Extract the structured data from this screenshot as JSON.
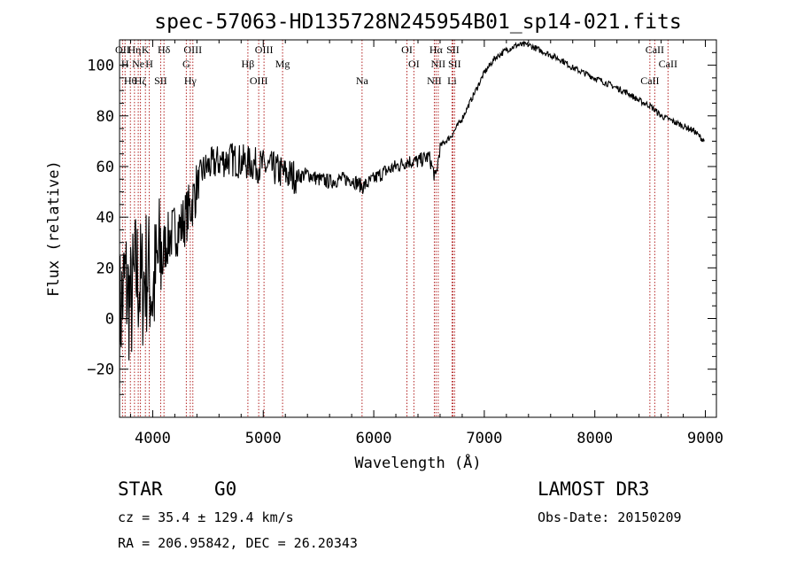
{
  "chart_data": {
    "type": "line",
    "title": "spec-57063-HD135728N245954B01_sp14-021.fits",
    "xlabel": "Wavelength (Å)",
    "ylabel": "Flux (relative)",
    "xlim": [
      3700,
      9100
    ],
    "ylim": [
      -39,
      110
    ],
    "xticks": [
      4000,
      5000,
      6000,
      7000,
      8000,
      9000
    ],
    "yticks": [
      -20,
      0,
      20,
      40,
      60,
      80,
      100
    ],
    "grid": false,
    "line_color": "#000000",
    "marker_color": "#b22222",
    "series": [
      {
        "name": "flux",
        "x": [
          3700,
          3750,
          3800,
          3850,
          3900,
          3950,
          4000,
          4050,
          4100,
          4150,
          4200,
          4250,
          4300,
          4350,
          4400,
          4450,
          4500,
          4600,
          4700,
          4800,
          4900,
          5000,
          5100,
          5200,
          5300,
          5400,
          5500,
          5600,
          5700,
          5800,
          5900,
          6000,
          6100,
          6200,
          6300,
          6400,
          6500,
          6560,
          6600,
          6700,
          6800,
          6900,
          7000,
          7100,
          7200,
          7300,
          7400,
          7500,
          7600,
          7700,
          7800,
          7900,
          8000,
          8100,
          8200,
          8300,
          8400,
          8500,
          8600,
          8700,
          8800,
          8900,
          8990
        ],
        "y": [
          0,
          15,
          5,
          18,
          12,
          20,
          10,
          22,
          28,
          32,
          35,
          36,
          40,
          45,
          52,
          58,
          60,
          62,
          63,
          62,
          61,
          60,
          59,
          57,
          56,
          57,
          55,
          54,
          55,
          55,
          52,
          55,
          58,
          60,
          62,
          62,
          64,
          55,
          68,
          72,
          79,
          88,
          97,
          103,
          106,
          108,
          108,
          106,
          104,
          102,
          99,
          97,
          95,
          93,
          91,
          89,
          86,
          84,
          80,
          78,
          76,
          74,
          70
        ]
      }
    ],
    "line_markers": [
      {
        "x": 3727,
        "label": "OII"
      },
      {
        "x": 3750,
        "label": "H"
      },
      {
        "x": 3798,
        "label": "Hθ"
      },
      {
        "x": 3835,
        "label": "Hη"
      },
      {
        "x": 3869,
        "label": "Ne"
      },
      {
        "x": 3889,
        "label": "Hζ"
      },
      {
        "x": 3934,
        "label": "K"
      },
      {
        "x": 3969,
        "label": "H"
      },
      {
        "x": 4072,
        "label": "SII"
      },
      {
        "x": 4102,
        "label": "Hδ"
      },
      {
        "x": 4304,
        "label": "G"
      },
      {
        "x": 4340,
        "label": "Hγ"
      },
      {
        "x": 4363,
        "label": "OIII"
      },
      {
        "x": 4861,
        "label": "Hβ"
      },
      {
        "x": 4959,
        "label": "OIII"
      },
      {
        "x": 5007,
        "label": "OIII"
      },
      {
        "x": 5175,
        "label": "Mg"
      },
      {
        "x": 5894,
        "label": "Na"
      },
      {
        "x": 6300,
        "label": "OI"
      },
      {
        "x": 6363,
        "label": "OI"
      },
      {
        "x": 6548,
        "label": "NII"
      },
      {
        "x": 6563,
        "label": "Hα"
      },
      {
        "x": 6583,
        "label": "NII"
      },
      {
        "x": 6708,
        "label": "Li"
      },
      {
        "x": 6716,
        "label": "SII"
      },
      {
        "x": 6731,
        "label": "SII"
      },
      {
        "x": 8498,
        "label": "CaII"
      },
      {
        "x": 8542,
        "label": "CaII"
      },
      {
        "x": 8662,
        "label": "CaII"
      }
    ]
  },
  "info": {
    "object_class": "STAR",
    "subclass": "G0",
    "survey": "LAMOST DR3",
    "redshift": "cz = 35.4 ± 129.4 km/s",
    "obs_date": "Obs-Date: 20150209",
    "coords": "RA = 206.95842, DEC =  26.20343"
  }
}
